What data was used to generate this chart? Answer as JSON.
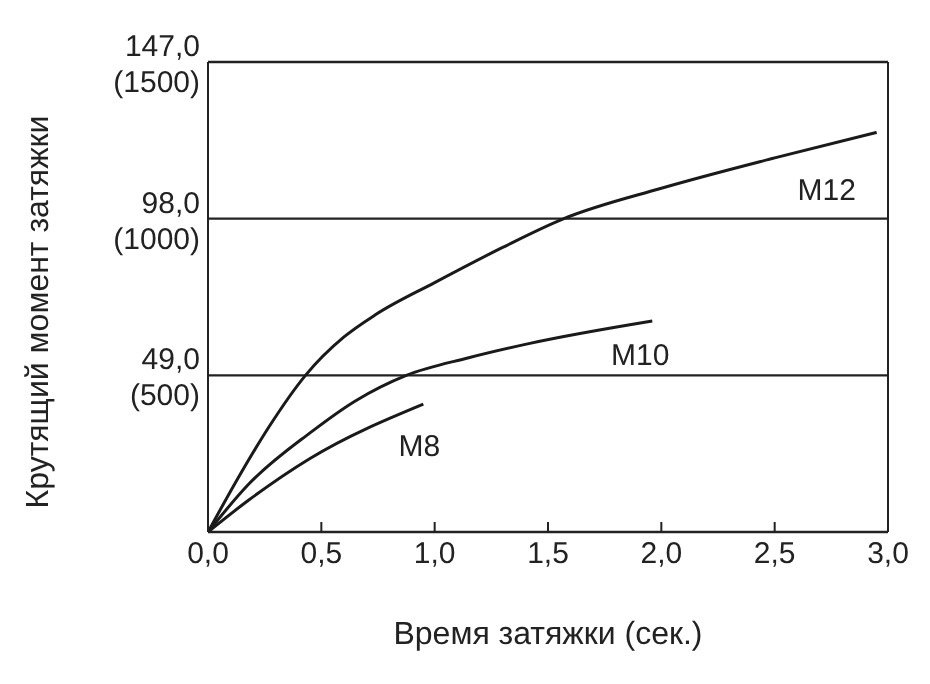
{
  "chart_data": {
    "type": "line",
    "xlabel": "Время затяжки (сек.)",
    "ylabel": "Крутящий момент затяжки",
    "xlim": [
      0,
      3
    ],
    "xticks": [
      {
        "value": 0,
        "label": "0,0"
      },
      {
        "value": 0.5,
        "label": "0,5"
      },
      {
        "value": 1,
        "label": "1,0"
      },
      {
        "value": 1.5,
        "label": "1,5"
      },
      {
        "value": 2,
        "label": "2,0"
      },
      {
        "value": 2.5,
        "label": "2,5"
      },
      {
        "value": 3,
        "label": "3,0"
      }
    ],
    "ylim": [
      0,
      1500
    ],
    "yticks": [
      {
        "value": 500,
        "label": "(500)"
      },
      {
        "value": 1000,
        "label": "(1000)"
      },
      {
        "value": 1500,
        "label": "(1500)"
      }
    ],
    "y2lim": [
      0,
      147
    ],
    "y2ticks": [
      {
        "value": 49,
        "label": "49,0"
      },
      {
        "value": 98,
        "label": "98,0"
      },
      {
        "value": 147,
        "label": "147,0"
      }
    ],
    "grid": "y",
    "marker": "none",
    "line_style": "solid",
    "legend": false,
    "series": [
      {
        "color": "#1a1a1a",
        "x": [
          0,
          0.15,
          0.27,
          0.43,
          0.6,
          0.74,
          1.0,
          1.3,
          1.57,
          2.0,
          2.5,
          2.95
        ],
        "values": [
          0,
          19,
          33,
          49,
          61,
          68,
          78,
          89,
          98,
          107.5,
          117,
          125
        ],
        "axis": "y2"
      },
      {
        "color": "#1a1a1a",
        "x": [
          0,
          0.18,
          0.45,
          0.65,
          0.875,
          1.15,
          1.42,
          1.96
        ],
        "values": [
          0,
          15,
          31,
          41,
          49,
          54.5,
          59,
          66
        ],
        "axis": "y2"
      },
      {
        "color": "#1a1a1a",
        "x": [
          0,
          0.18,
          0.45,
          0.95
        ],
        "values": [
          0,
          10,
          23,
          40
        ],
        "axis": "y2"
      }
    ],
    "annotations": [
      "M12",
      "M10",
      "M8"
    ]
  }
}
